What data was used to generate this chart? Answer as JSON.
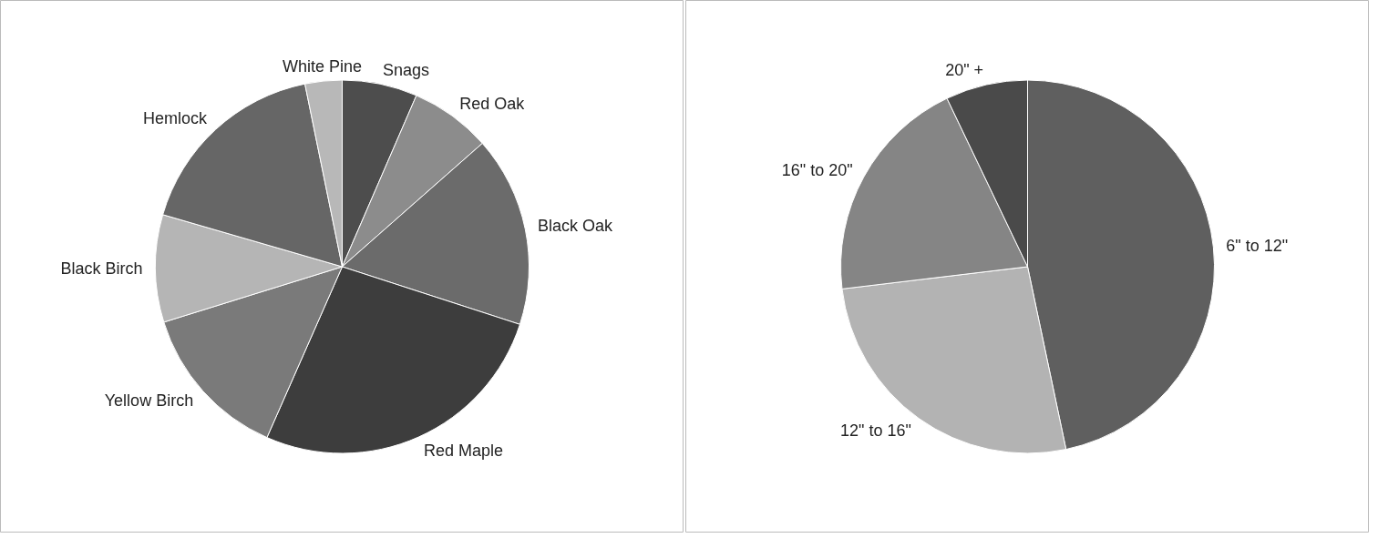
{
  "chart_data": [
    {
      "type": "pie",
      "categories": [
        "Snags",
        "Red Oak",
        "Black Oak",
        "Red Maple",
        "Yellow Birch",
        "Black Birch",
        "Hemlock",
        "White Pine"
      ],
      "values": [
        6.5,
        7,
        16.5,
        26.6,
        13.6,
        9.3,
        17.3,
        3.2
      ],
      "colors": [
        "#4d4d4d",
        "#8c8c8c",
        "#6b6b6b",
        "#3d3d3d",
        "#7a7a7a",
        "#b5b5b5",
        "#666666",
        "#b8b8b8"
      ]
    },
    {
      "type": "pie",
      "categories": [
        "6\" to 12\"",
        "12\" to 16\"",
        "16\" to 20\"",
        "20\" +"
      ],
      "values": [
        46.7,
        26.4,
        19.8,
        7.1
      ],
      "colors": [
        "#5f5f5f",
        "#b3b3b3",
        "#858585",
        "#4a4a4a"
      ]
    }
  ]
}
